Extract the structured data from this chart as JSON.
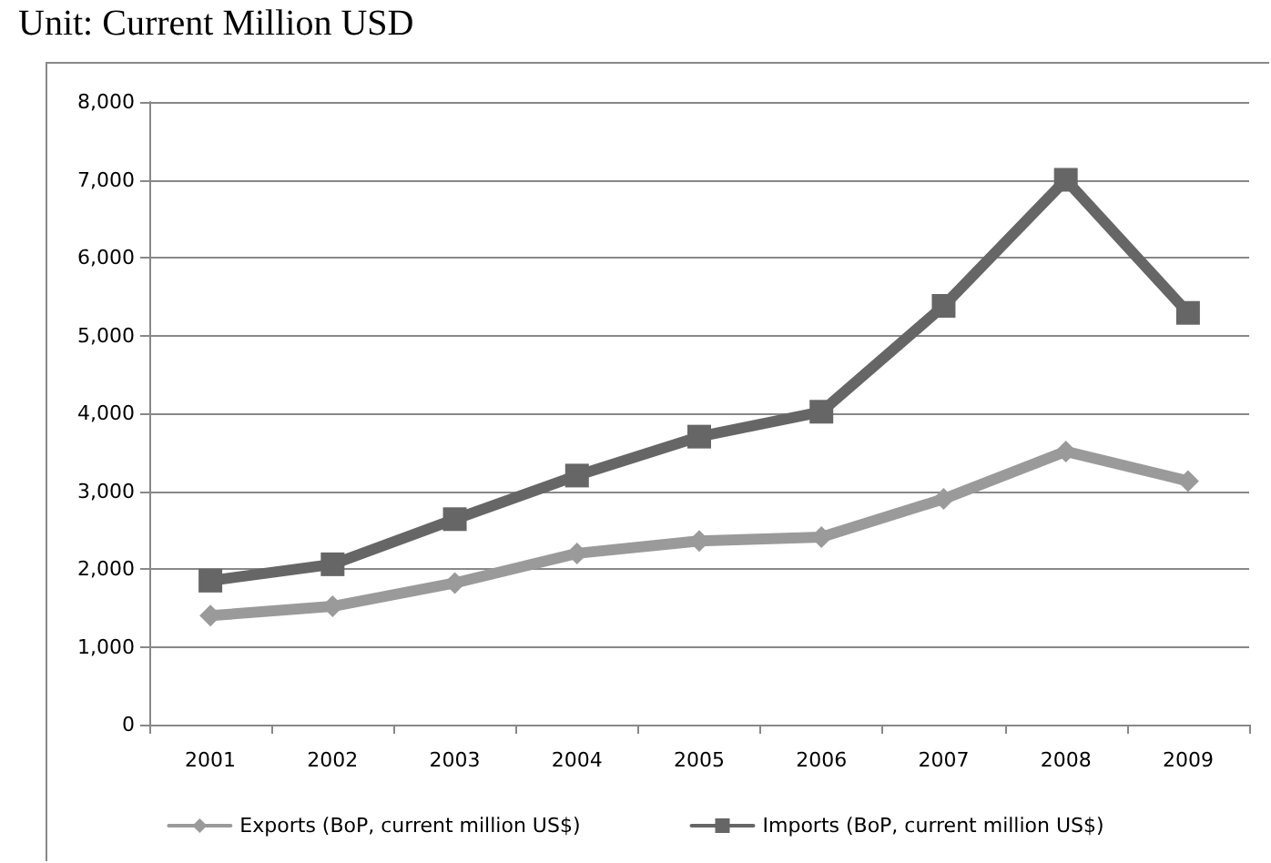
{
  "chart_data": {
    "type": "line",
    "title": "Unit: Current Million USD",
    "categories": [
      "2001",
      "2002",
      "2003",
      "2004",
      "2005",
      "2006",
      "2007",
      "2008",
      "2009"
    ],
    "series": [
      {
        "name": "Exports (BoP, current million US$)",
        "color": "#9a9a9a",
        "marker": "diamond",
        "values": [
          1400,
          1520,
          1820,
          2200,
          2360,
          2410,
          2900,
          3510,
          3130
        ]
      },
      {
        "name": "Imports (BoP, current million US$)",
        "color": "#666666",
        "marker": "square",
        "values": [
          1850,
          2060,
          2640,
          3200,
          3700,
          4020,
          5380,
          7000,
          5290
        ]
      }
    ],
    "ylim": [
      0,
      8000
    ],
    "yticks": [
      0,
      {
        "value": 1000,
        "label": "1,000"
      },
      {
        "value": 2000,
        "label": "2,000"
      },
      {
        "value": 3000,
        "label": "3,000"
      },
      {
        "value": 4000,
        "label": "4,000"
      },
      {
        "value": 5000,
        "label": "5,000"
      },
      {
        "value": 6000,
        "label": "6,000"
      },
      {
        "value": 7000,
        "label": "7,000"
      },
      {
        "value": 8000,
        "label": "8,000"
      }
    ],
    "grid": "y",
    "legend": "bottom",
    "line_style": "solid"
  }
}
